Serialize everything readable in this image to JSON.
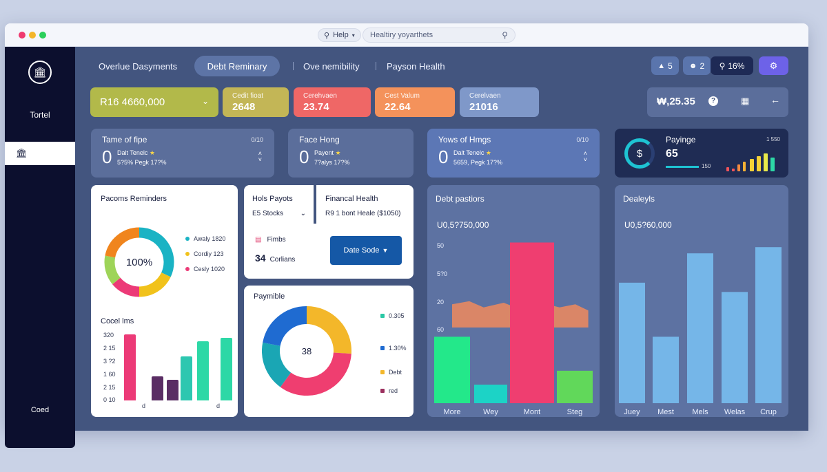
{
  "browser": {
    "help_label": "Help",
    "search_placeholder": "Healtiry yoyarthets",
    "traffic_colors": [
      "#ef3a6f",
      "#f4b52a",
      "#2bcf5a"
    ]
  },
  "sidebar": {
    "title": "Tortel",
    "footer": "Coed"
  },
  "tabs": [
    "Overlue Dasyments",
    "Debt Reminary",
    "Ove nemibility",
    "Payson Health"
  ],
  "header_chips": {
    "chip1": "5",
    "chip2": "2",
    "chip3": "16%"
  },
  "kpis": [
    {
      "line1": "",
      "value": "R16 4660,000",
      "color": "#b2b94a"
    },
    {
      "line1": "Cedit fioat",
      "value": "2648",
      "color": "#c3b656"
    },
    {
      "line1": "Cerehvaen",
      "value": "23.74",
      "color": "#ef6766"
    },
    {
      "line1": "Cest Valum",
      "value": "22.64",
      "color": "#f4925b"
    },
    {
      "line1": "Cerelvaen",
      "value": "21016",
      "color": "#7f98c9"
    }
  ],
  "balance": {
    "value": "₩,25.35"
  },
  "stat_cards": [
    {
      "title": "Tame of fipe",
      "right": "0/10",
      "big": "0",
      "sub1": "Dalt Tenelc",
      "sub2": "5?5% Pegk 17?%"
    },
    {
      "title": "Face Hong",
      "big": "0",
      "sub1": "Payent",
      "sub2": "7?alys 17?%"
    },
    {
      "title": "Yows of Hmgs",
      "right": "0/10",
      "big": "0",
      "sub1": "Dalt Tenelc",
      "sub2": "5659, Pegk 17?%"
    }
  ],
  "paying": {
    "title": "Payinge",
    "value": "65",
    "right": "1 550",
    "small": "150",
    "bars": [
      6,
      4,
      10,
      14,
      18,
      22,
      26,
      20
    ]
  },
  "reminders": {
    "title": "Pacoms Reminders",
    "center": "100%",
    "donut": [
      {
        "label": "Awaly 1820",
        "value": 32,
        "color": "#1ab3c4"
      },
      {
        "label": "Cordiy 123",
        "value": 18,
        "color": "#f1c21b"
      },
      {
        "label": "Cesly 1020",
        "value": 14,
        "color": "#ec3a77"
      },
      {
        "label": "",
        "value": 14,
        "color": "#9ed458"
      },
      {
        "label": "",
        "value": 22,
        "color": "#f0851d"
      }
    ]
  },
  "coord_items": {
    "title": "Cocel lms",
    "ticks": [
      "320",
      "2 15",
      "3 ?2",
      "1 60",
      "2 15",
      "0 10"
    ],
    "foot": [
      "d",
      "d"
    ],
    "bars": [
      {
        "value": 95,
        "color": "#ec3a77"
      },
      {
        "value": 35,
        "color": "#5a2d64"
      },
      {
        "value": 30,
        "color": "#5a2d64"
      },
      {
        "value": 63,
        "color": "#2dc7b0"
      },
      {
        "value": 85,
        "color": "#2dd8a6"
      },
      {
        "value": 90,
        "color": "#2dd8a6"
      }
    ]
  },
  "hols": {
    "title": "Hols Payots",
    "select": "E5 Stocks",
    "row1": "Fimbs",
    "row2_num": "34",
    "row2_label": "Corlians"
  },
  "financial": {
    "title": "Financal Health",
    "text": "R9 1 bont Heale ($1050)",
    "button": "Date Sode"
  },
  "paymible": {
    "title": "Paymible",
    "center": "38",
    "donut": [
      {
        "label": "0.305",
        "value": 26,
        "color": "#f3b72a"
      },
      {
        "label": "Debt",
        "value": 34,
        "color": "#ef3e70"
      },
      {
        "label": "1.30%",
        "value": 18,
        "color": "#1aa6b4"
      },
      {
        "label": "red",
        "value": 22,
        "color": "#1f6bd1"
      }
    ],
    "legend": [
      {
        "label": "0.305",
        "color": "#29c8a5"
      },
      {
        "label": "1.30%",
        "color": "#1f6bd1"
      },
      {
        "label": "Debt",
        "color": "#f3b72a"
      },
      {
        "label": "red",
        "color": "#9b2f5e"
      }
    ]
  },
  "chart_data": [
    {
      "type": "bar",
      "title": "Debt pastiors",
      "subtitle": "U0,5?750,000",
      "ticks": [
        "50",
        "5?0",
        "20",
        "60"
      ],
      "categories": [
        "More",
        "Wey",
        "Mont",
        "Steg"
      ],
      "values": [
        43,
        12,
        104,
        21
      ],
      "colors": [
        "#23e88a",
        "#1cd3c6",
        "#ef3e70",
        "#61d85a"
      ],
      "ylim": [
        0,
        110
      ],
      "area": [
        {
          "x": 0,
          "y": 64
        },
        {
          "x": 0.12,
          "y": 66
        },
        {
          "x": 0.22,
          "y": 62
        },
        {
          "x": 0.36,
          "y": 65
        },
        {
          "x": 0.47,
          "y": 61
        },
        {
          "x": 0.5,
          "y": 63
        },
        {
          "x": 0.62,
          "y": 65
        },
        {
          "x": 0.75,
          "y": 62
        },
        {
          "x": 0.86,
          "y": 64
        },
        {
          "x": 0.95,
          "y": 60
        }
      ]
    },
    {
      "type": "bar",
      "title": "Dealeyls",
      "subtitle": "U0,5?60,000",
      "categories": [
        "Juey",
        "Mest",
        "Mels",
        "Welas",
        "Crup"
      ],
      "values": [
        78,
        43,
        97,
        72,
        101
      ],
      "colors": [
        "#75b6e8",
        "#75b6e8",
        "#75b6e8",
        "#75b6e8",
        "#75b6e8"
      ],
      "ylim": [
        0,
        110
      ]
    }
  ]
}
